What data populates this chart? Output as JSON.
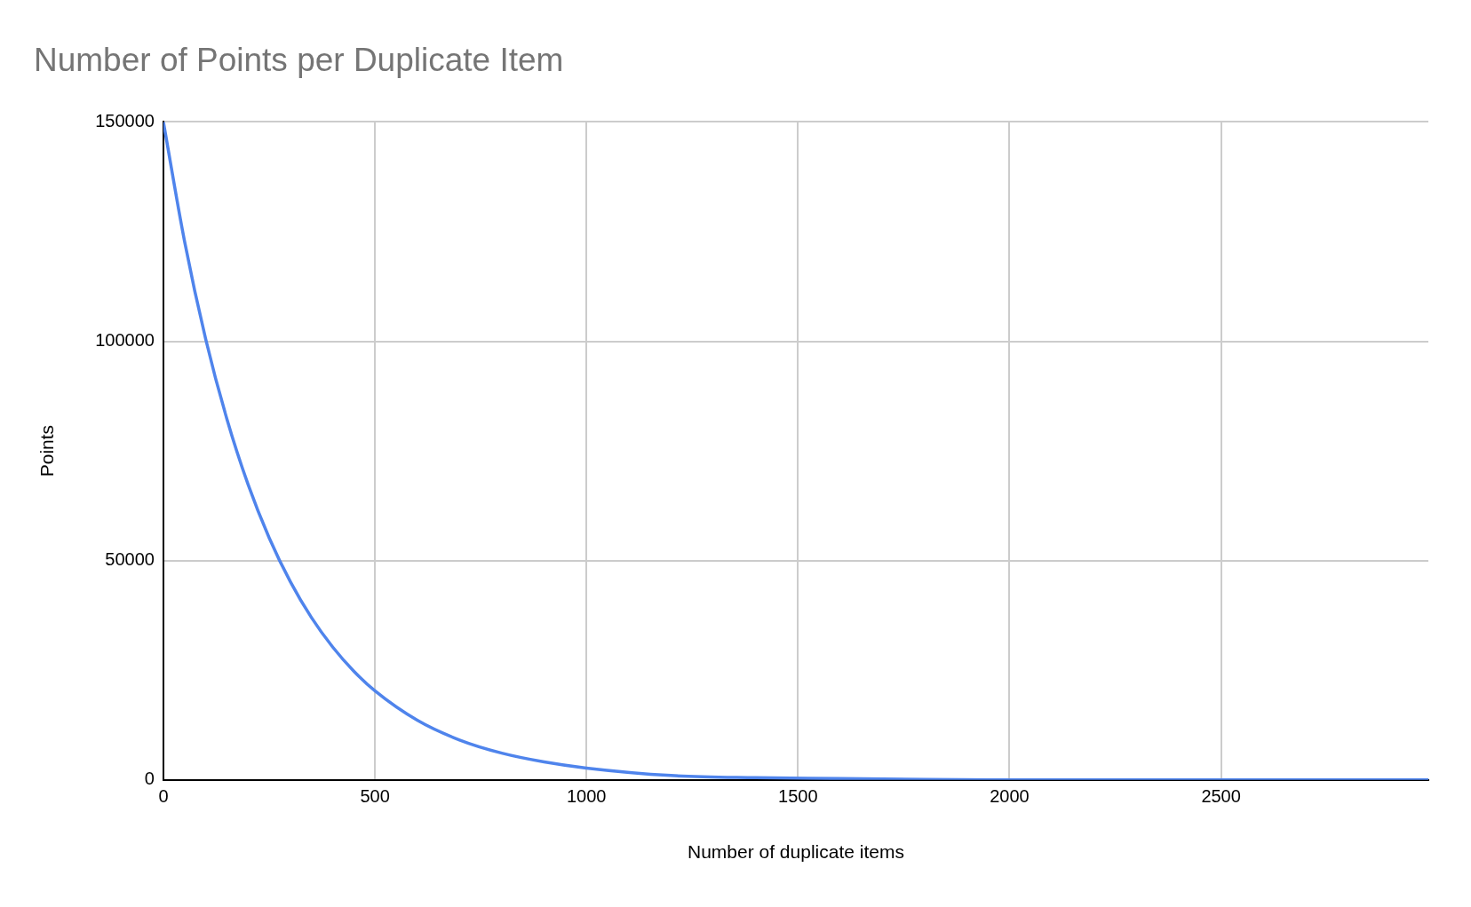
{
  "chart_data": {
    "type": "line",
    "title": "Number of Points per Duplicate Item",
    "xlabel": "Number of duplicate items",
    "ylabel": "Points",
    "x": [
      0,
      50,
      100,
      150,
      200,
      250,
      300,
      350,
      400,
      450,
      500,
      600,
      700,
      800,
      900,
      1000,
      1200,
      1400,
      1600,
      1800,
      2000,
      2500,
      2990
    ],
    "series": [
      {
        "color": "#4f84ec",
        "values": [
          150000,
          122800,
          100500,
          82300,
          67400,
          55200,
          45200,
          37000,
          30300,
          24800,
          20300,
          13600,
          9100,
          6100,
          4100,
          2700,
          1000,
          500,
          300,
          100,
          0,
          0,
          0
        ]
      }
    ],
    "xlim": [
      0,
      2990
    ],
    "xticks": [
      0,
      500,
      1000,
      1500,
      2000,
      2500
    ],
    "ylim": [
      0,
      150000
    ],
    "yticks": [
      0,
      50000,
      100000,
      150000
    ],
    "grid": true,
    "legend": false,
    "marker": "none",
    "line_style": "solid"
  }
}
